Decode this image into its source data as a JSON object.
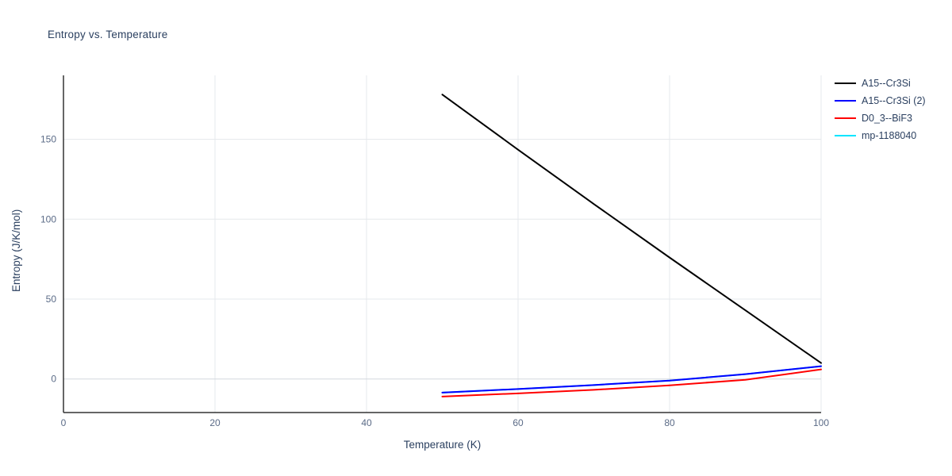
{
  "chart_data": {
    "type": "line",
    "title": "Entropy vs. Temperature",
    "xlabel": "Temperature (K)",
    "ylabel": "Entropy (J/K/mol)",
    "xlim": [
      0,
      100
    ],
    "ylim": [
      -21,
      190
    ],
    "xticks": [
      0,
      20,
      40,
      60,
      80,
      100
    ],
    "yticks": [
      0,
      50,
      100,
      150
    ],
    "grid": true,
    "legend_position": "top-right-outside",
    "series": [
      {
        "name": "A15--Cr3Si",
        "color": "#000000",
        "x": [
          50,
          60,
          70,
          80,
          90,
          100
        ],
        "y": [
          178,
          143.5,
          109.5,
          76,
          43,
          10
        ]
      },
      {
        "name": "A15--Cr3Si (2)",
        "color": "#0000ff",
        "x": [
          50,
          60,
          70,
          80,
          90,
          100
        ],
        "y": [
          -8.5,
          -6.3,
          -3.8,
          -1.0,
          3.0,
          8
        ]
      },
      {
        "name": "D0_3--BiF3",
        "color": "#ff0000",
        "x": [
          50,
          60,
          70,
          80,
          90,
          100
        ],
        "y": [
          -11,
          -9.0,
          -6.8,
          -4.0,
          -0.5,
          6
        ]
      },
      {
        "name": "mp-1188040",
        "color": "#00e5ff",
        "x": [
          50,
          60,
          70,
          80,
          90,
          100
        ],
        "y": [
          -8.5,
          -6.3,
          -3.8,
          -1.0,
          3.0,
          8
        ]
      }
    ]
  },
  "colors": {
    "background": "#ffffff",
    "title_text": "#2a3f5f",
    "tick_text": "#5b6b87",
    "grid": "#e5e8ec",
    "zero_line": "#d4d8dd",
    "axis_spine": "#333333"
  }
}
